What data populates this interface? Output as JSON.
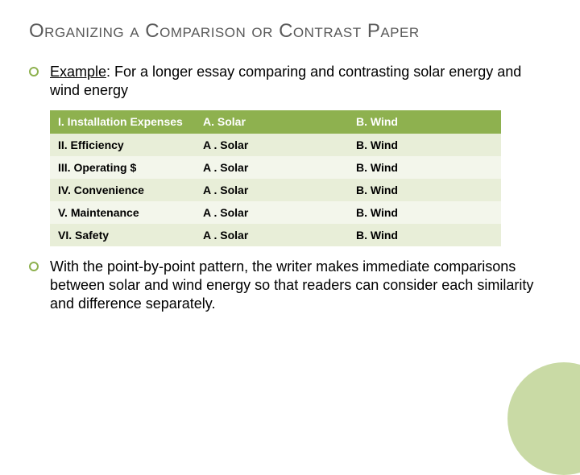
{
  "title": "Organizing a Comparison or Contrast Paper",
  "example_label": "Example",
  "example_text": ": For a longer essay comparing and contrasting solar energy and wind energy",
  "table": {
    "header": {
      "c1": "I. Installation Expenses",
      "c2": "A. Solar",
      "c3": "B. Wind"
    },
    "rows": [
      {
        "c1": "II. Efficiency",
        "c2": "A . Solar",
        "c3": "B. Wind"
      },
      {
        "c1": "III. Operating  $",
        "c2": "A . Solar",
        "c3": "B. Wind"
      },
      {
        "c1": "IV. Convenience",
        "c2": "A . Solar",
        "c3": "B. Wind"
      },
      {
        "c1": "V. Maintenance",
        "c2": "A . Solar",
        "c3": "B. Wind"
      },
      {
        "c1": "VI. Safety",
        "c2": "A . Solar",
        "c3": "B. Wind"
      }
    ]
  },
  "conclusion": "With the point-by-point pattern, the writer makes immediate comparisons between solar and wind energy so that readers can consider each similarity and difference separately.",
  "colors": {
    "accent": "#8EB14F",
    "row_odd": "#E8EED8",
    "row_even": "#F3F6EB",
    "deco": "#C3D69B",
    "title_color": "#595959"
  }
}
